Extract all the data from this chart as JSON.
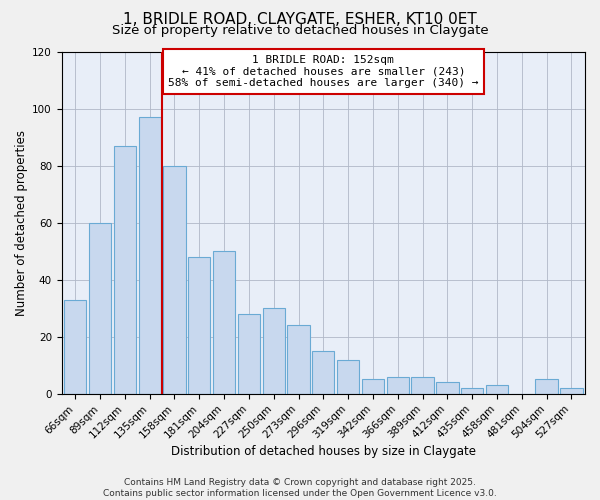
{
  "title": "1, BRIDLE ROAD, CLAYGATE, ESHER, KT10 0ET",
  "subtitle": "Size of property relative to detached houses in Claygate",
  "xlabel": "Distribution of detached houses by size in Claygate",
  "ylabel": "Number of detached properties",
  "categories": [
    "66sqm",
    "89sqm",
    "112sqm",
    "135sqm",
    "158sqm",
    "181sqm",
    "204sqm",
    "227sqm",
    "250sqm",
    "273sqm",
    "296sqm",
    "319sqm",
    "342sqm",
    "366sqm",
    "389sqm",
    "412sqm",
    "435sqm",
    "458sqm",
    "481sqm",
    "504sqm",
    "527sqm"
  ],
  "values": [
    33,
    60,
    87,
    97,
    80,
    48,
    50,
    28,
    30,
    24,
    15,
    12,
    5,
    6,
    6,
    4,
    2,
    3,
    0,
    5,
    2
  ],
  "bar_color": "#c8d8ee",
  "bar_edge_color": "#6aaad4",
  "vline_color": "#cc0000",
  "annotation_title": "1 BRIDLE ROAD: 152sqm",
  "annotation_line1": "← 41% of detached houses are smaller (243)",
  "annotation_line2": "58% of semi-detached houses are larger (340) →",
  "annotation_box_color": "white",
  "annotation_box_edge_color": "#cc0000",
  "ylim": [
    0,
    120
  ],
  "yticks": [
    0,
    20,
    40,
    60,
    80,
    100,
    120
  ],
  "footer1": "Contains HM Land Registry data © Crown copyright and database right 2025.",
  "footer2": "Contains public sector information licensed under the Open Government Licence v3.0.",
  "bg_color": "#f0f0f0",
  "plot_bg_color": "#e8eef8",
  "title_fontsize": 11,
  "subtitle_fontsize": 9.5,
  "axis_label_fontsize": 8.5,
  "tick_fontsize": 7.5,
  "annotation_fontsize": 8,
  "footer_fontsize": 6.5
}
